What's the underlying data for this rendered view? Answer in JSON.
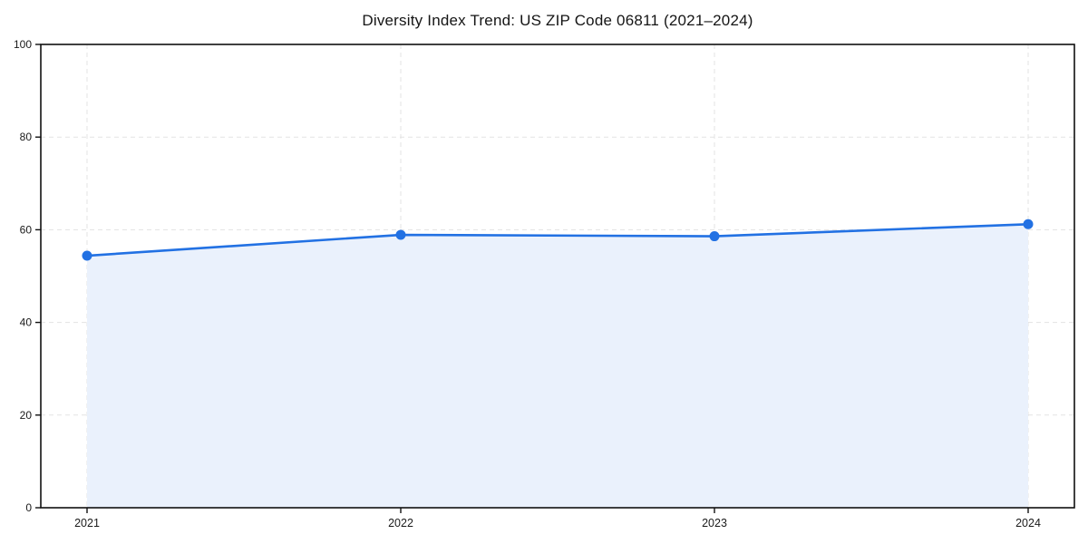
{
  "page": {
    "background": "#ffffff"
  },
  "chart_data": {
    "type": "area",
    "title": "Diversity Index Trend: US ZIP Code 06811 (2021–2024)",
    "categories": [
      "2021",
      "2022",
      "2023",
      "2024"
    ],
    "series": [
      {
        "name": "Diversity Index",
        "values": [
          54.4,
          58.9,
          58.6,
          61.2
        ]
      }
    ],
    "xlabel": "",
    "ylabel": "",
    "ylim": [
      0,
      100
    ],
    "yticks": [
      0,
      20,
      40,
      60,
      80,
      100
    ],
    "grid": "dashed, horizontal at yticks and vertical at each year",
    "legend": "none",
    "colors": {
      "line": "#2271e3",
      "marker": "#2271e3",
      "fill": "#eaf1fc",
      "grid": "#e3e3e3",
      "axis": "#111111",
      "text": "#1a1a1a"
    }
  }
}
